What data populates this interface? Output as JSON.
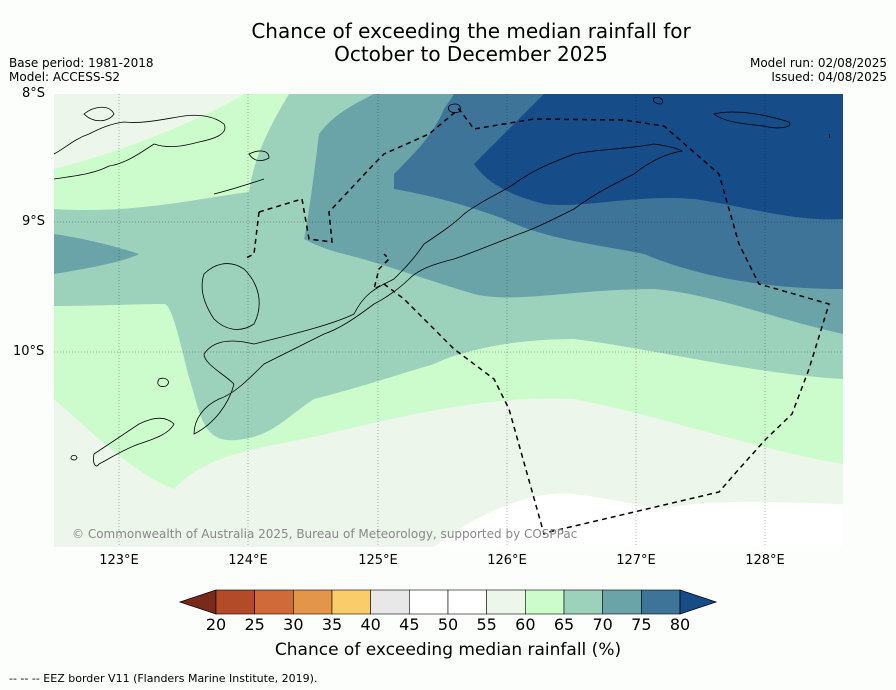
{
  "title": {
    "line1": "Chance of exceeding the median rainfall for",
    "line2": "October to December 2025"
  },
  "meta": {
    "base_period": "Base period: 1981-2018",
    "model": "Model: ACCESS-S2",
    "model_run": "Model run: 02/08/2025",
    "issued": "Issued: 04/08/2025"
  },
  "axes": {
    "lat_labels": [
      "8°S",
      "9°S",
      "10°S"
    ],
    "lon_labels": [
      "123°E",
      "124°E",
      "125°E",
      "126°E",
      "127°E",
      "128°E"
    ]
  },
  "credit": "© Commonwealth of Australia 2025, Bureau of Meteorology, supported by COSPPac",
  "colorbar": {
    "ticks": [
      "20",
      "25",
      "30",
      "35",
      "40",
      "45",
      "50",
      "55",
      "60",
      "65",
      "70",
      "75",
      "80"
    ],
    "colors": [
      "#7a2a1a",
      "#b34a28",
      "#d06a38",
      "#e3954a",
      "#fbcc6a",
      "#e8e8e8",
      "#ffffff",
      "#ffffff",
      "#ecf6ea",
      "#ccfccc",
      "#9cd2bc",
      "#6aa4a8",
      "#3e7498",
      "#164c88"
    ],
    "label": "Chance of exceeding median rainfall (%)"
  },
  "footer": "--  --  -- EEZ border V11 (Flanders Marine Institute, 2019)."
}
